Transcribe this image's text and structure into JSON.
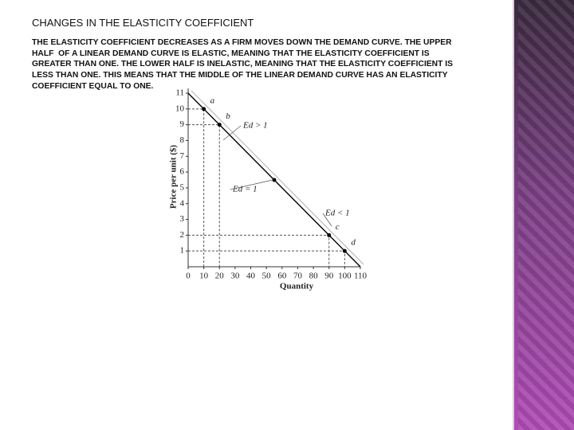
{
  "slide": {
    "title": "CHANGES IN THE ELASTICITY COEFFICIENT",
    "body": [
      "THE ELASTICITY COEFFICIENT DECREASES AS A FIRM MOVES DOWN THE DEMAND CURVE. THE UPPER",
      "HALF  OF A LINEAR DEMAND CURVE IS ELASTIC, MEANING THAT THE ELASTICITY COEFFICIENT IS",
      "GREATER THAN ONE. THE LOWER HALF IS INELASTIC, MEANING THAT THE ELASTICITY COEFFICIENT IS",
      "LESS THAN ONE. THIS MEANS THAT THE MIDDLE OF THE LINEAR DEMAND CURVE HAS AN ELASTICITY",
      "COEFFICIENT EQUAL TO ONE."
    ]
  },
  "chart_data": {
    "type": "line",
    "x_label": "Quantity",
    "y_label": "Price per unit ($)",
    "x": [
      0,
      10,
      20,
      55,
      90,
      100,
      110
    ],
    "values": [
      11,
      10,
      9,
      5.5,
      2,
      1,
      0
    ],
    "point_labels": [
      null,
      "a",
      "b",
      null,
      "c",
      "d",
      null
    ],
    "annotations": [
      "Ed > 1",
      "Ed = 1",
      "Ed < 1"
    ],
    "color": "#000000",
    "xlim": [
      0,
      110
    ],
    "ylim": [
      0,
      11
    ],
    "xticks": [
      0,
      10,
      20,
      30,
      40,
      50,
      60,
      70,
      80,
      90,
      100,
      110
    ],
    "yticks": [
      1,
      2,
      3,
      4,
      5,
      6,
      7,
      8,
      9,
      10,
      11
    ]
  }
}
